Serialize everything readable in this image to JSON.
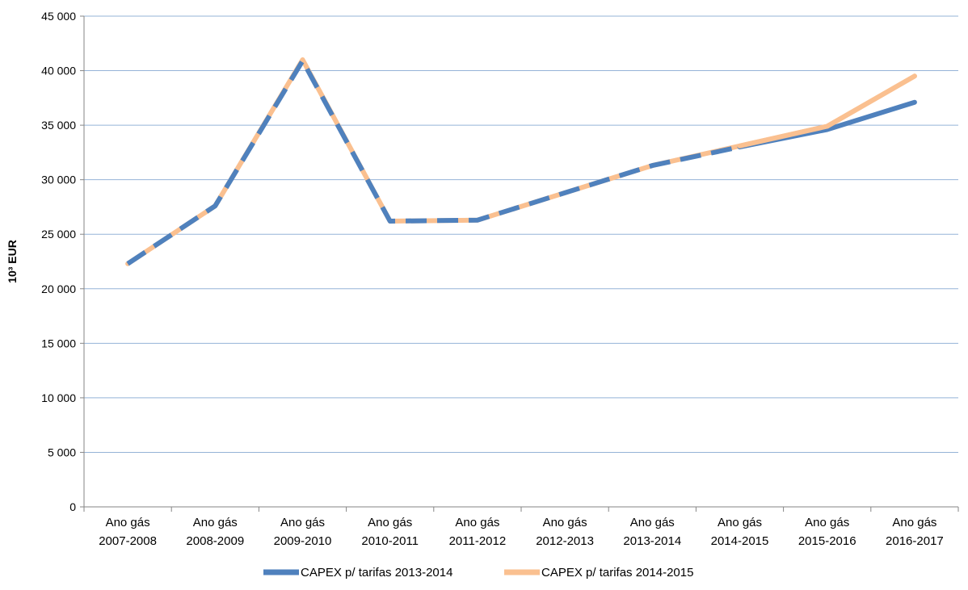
{
  "chart_data": {
    "type": "line",
    "title": "",
    "xlabel": "",
    "ylabel": "10³ EUR",
    "ylim": [
      0,
      45000
    ],
    "y_ticks": [
      0,
      5000,
      10000,
      15000,
      20000,
      25000,
      30000,
      35000,
      40000,
      45000
    ],
    "y_tick_labels": [
      "0",
      "5 000",
      "10 000",
      "15 000",
      "20 000",
      "25 000",
      "30 000",
      "35 000",
      "40 000",
      "45 000"
    ],
    "grid": true,
    "legend_position": "bottom",
    "categories": [
      [
        "Ano gás",
        "2007-2008"
      ],
      [
        "Ano gás",
        "2008-2009"
      ],
      [
        "Ano gás",
        "2009-2010"
      ],
      [
        "Ano gás",
        "2010-2011"
      ],
      [
        "Ano gás",
        "2011-2012"
      ],
      [
        "Ano gás",
        "2012-2013"
      ],
      [
        "Ano gás",
        "2013-2014"
      ],
      [
        "Ano gás",
        "2014-2015"
      ],
      [
        "Ano gás",
        "2015-2016"
      ],
      [
        "Ano gás",
        "2016-2017"
      ]
    ],
    "series": [
      {
        "name": "CAPEX p/ tarifas  2013-2014",
        "color": "#4F81BD",
        "values": [
          22300,
          27600,
          40900,
          26200,
          26300,
          28800,
          31300,
          33000,
          34600,
          37100
        ]
      },
      {
        "name": "CAPEX p/ tarifas  2014-2015",
        "color": "#FAC090",
        "values": [
          22300,
          27600,
          41000,
          26200,
          26300,
          28800,
          31300,
          33100,
          34900,
          39500
        ]
      }
    ]
  }
}
